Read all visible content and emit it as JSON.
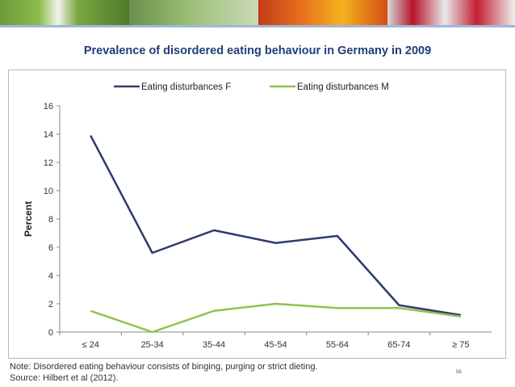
{
  "title": "Prevalence of disordered eating behaviour in Germany in 2009",
  "note_line1": "Note: Disordered eating behaviour consists of binging, purging or strict dieting.",
  "note_line2": "Source: Hilbert et al (2012).",
  "page_number": "56",
  "chart_data": {
    "type": "line",
    "categories": [
      "≤ 24",
      "25-34",
      "35-44",
      "45-54",
      "55-64",
      "65-74",
      "≥ 75"
    ],
    "series": [
      {
        "name": "Eating disturbances F",
        "color": "#2e3a70",
        "values": [
          13.9,
          5.6,
          7.2,
          6.3,
          6.8,
          1.9,
          1.2
        ]
      },
      {
        "name": "Eating disturbances M",
        "color": "#8dc44a",
        "values": [
          1.5,
          0.0,
          1.5,
          2.0,
          1.7,
          1.7,
          1.1
        ]
      }
    ],
    "ylabel": "Percent",
    "xlabel": "",
    "ylim": [
      0,
      16
    ],
    "yticks": [
      0,
      2,
      4,
      6,
      8,
      10,
      12,
      14,
      16
    ],
    "legend_position": "top"
  }
}
